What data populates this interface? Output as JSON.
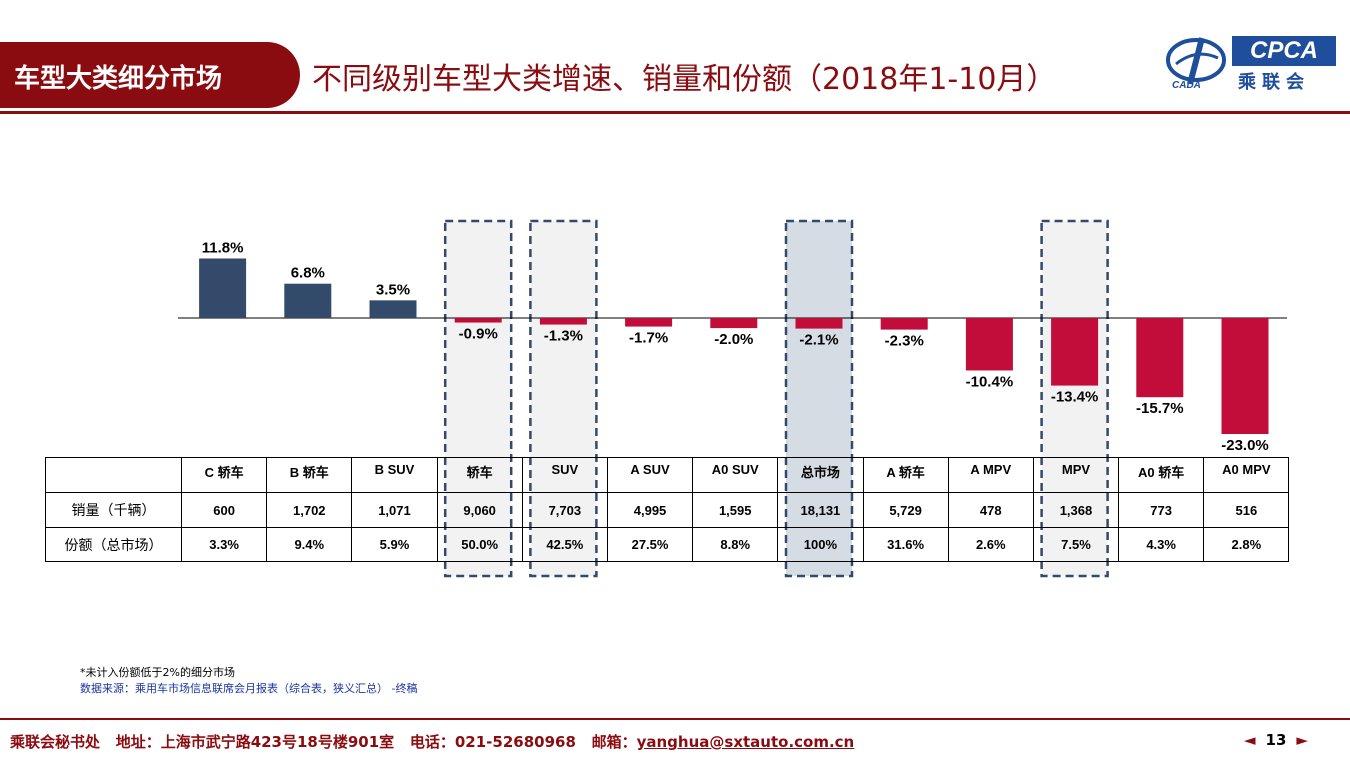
{
  "header": {
    "section": "车型大类细分市场",
    "title": "不同级别车型大类增速、销量和份额（2018年1-10月）"
  },
  "logo": {
    "brand_en": "CPCA",
    "brand_cn": "乘联会",
    "sub": "CADA"
  },
  "colors": {
    "positive": "#344a6b",
    "negative": "#c20d3b",
    "accent": "#8b0c10",
    "highlight": "#f2f2f2",
    "total_highlight": "#d6dce4"
  },
  "chart_data": {
    "type": "bar",
    "categories": [
      "C 轿车",
      "B 轿车",
      "B SUV",
      "轿车",
      "SUV",
      "A SUV",
      "A0 SUV",
      "总市场",
      "A 轿车",
      "A MPV",
      "MPV",
      "A0 轿车",
      "A0 MPV"
    ],
    "values": [
      11.8,
      6.8,
      3.5,
      -0.9,
      -1.3,
      -1.7,
      -2.0,
      -2.1,
      -2.3,
      -10.4,
      -13.4,
      -15.7,
      -23.0
    ],
    "value_labels": [
      "11.8%",
      "6.8%",
      "3.5%",
      "-0.9%",
      "-1.3%",
      "-1.7%",
      "-2.0%",
      "-2.1%",
      "-2.3%",
      "-10.4%",
      "-13.4%",
      "-15.7%",
      "-23.0%"
    ],
    "highlighted": [
      "轿车",
      "SUV",
      "总市场",
      "MPV"
    ],
    "ylim": [
      -23.0,
      11.8
    ],
    "grid": false,
    "title": "",
    "xlabel": "",
    "ylabel": ""
  },
  "table": {
    "rows": [
      {
        "label": "销量（千辆）",
        "values": [
          "600",
          "1,702",
          "1,071",
          "9,060",
          "7,703",
          "4,995",
          "1,595",
          "18,131",
          "5,729",
          "478",
          "1,368",
          "773",
          "516"
        ]
      },
      {
        "label": "份额（总市场）",
        "values": [
          "3.3%",
          "9.4%",
          "5.9%",
          "50.0%",
          "42.5%",
          "27.5%",
          "8.8%",
          "100%",
          "31.6%",
          "2.6%",
          "7.5%",
          "4.3%",
          "2.8%"
        ]
      }
    ]
  },
  "notes": {
    "footnote": "*未计入份额低于2%的细分市场",
    "source": "数据来源：乘用车市场信息联席会月报表（综合表，狭义汇总）  -终稿"
  },
  "footer": {
    "org": "乘联会秘书处",
    "address": "地址：上海市武宁路423号18号楼901室",
    "phone": "电话：021-52680968",
    "email_label": "邮箱：",
    "email": "yanghua@sxtauto.com.cn",
    "page": "13",
    "prev": "◄",
    "next": "►"
  }
}
